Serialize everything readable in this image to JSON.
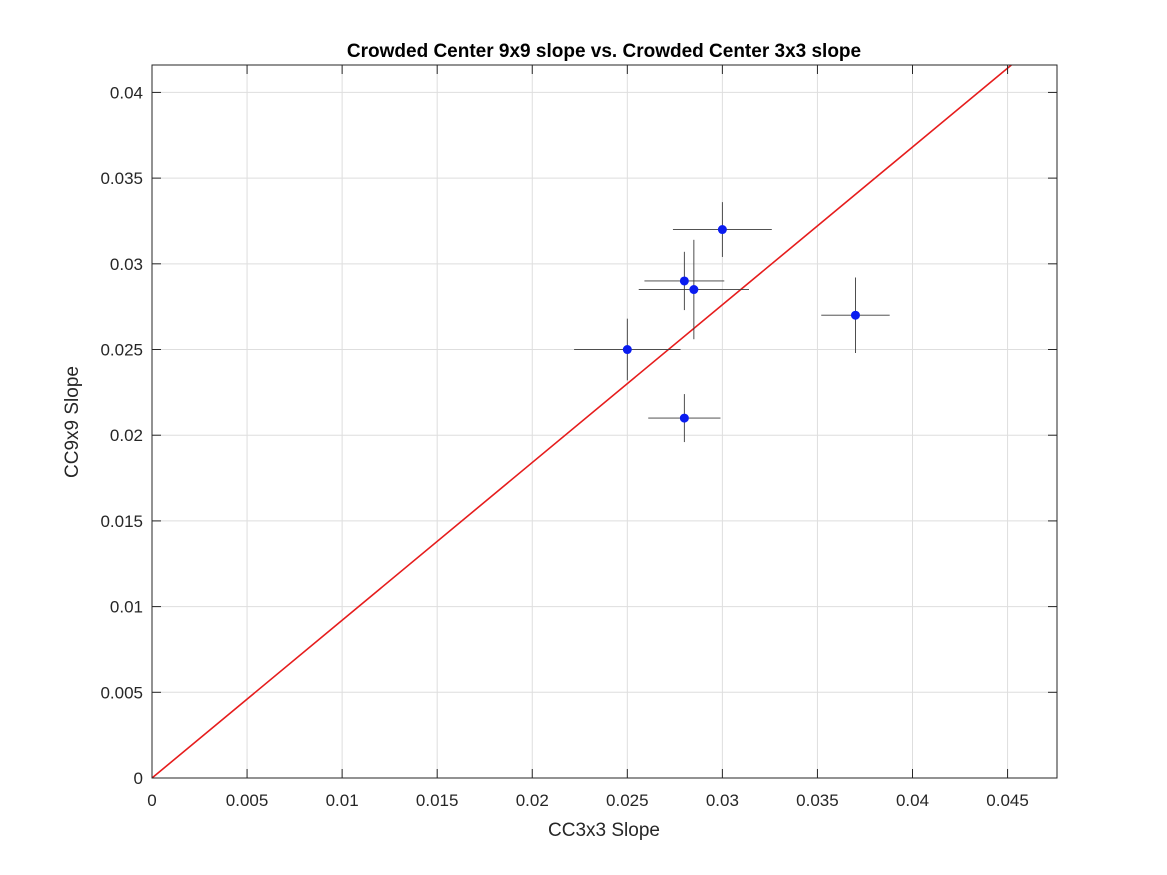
{
  "chart_data": {
    "type": "scatter",
    "title": "Crowded Center 9x9 slope vs. Crowded Center 3x3 slope",
    "xlabel": "CC3x3 Slope",
    "ylabel": "CC9x9 Slope",
    "xlim": [
      0,
      0.0476
    ],
    "ylim": [
      0,
      0.0416
    ],
    "xticks": [
      0,
      0.005,
      0.01,
      0.015,
      0.02,
      0.025,
      0.03,
      0.035,
      0.04,
      0.045
    ],
    "xtick_labels": [
      "0",
      "0.005",
      "0.01",
      "0.015",
      "0.02",
      "0.025",
      "0.03",
      "0.035",
      "0.04",
      "0.045"
    ],
    "yticks": [
      0,
      0.005,
      0.01,
      0.015,
      0.02,
      0.025,
      0.03,
      0.035,
      0.04
    ],
    "ytick_labels": [
      "0",
      "0.005",
      "0.01",
      "0.015",
      "0.02",
      "0.025",
      "0.03",
      "0.035",
      "0.04"
    ],
    "grid": true,
    "points": [
      {
        "x": 0.025,
        "y": 0.025,
        "xerr": 0.0028,
        "yerr": 0.0018
      },
      {
        "x": 0.028,
        "y": 0.029,
        "xerr": 0.0021,
        "yerr": 0.0017
      },
      {
        "x": 0.0285,
        "y": 0.0285,
        "xerr": 0.0029,
        "yerr": 0.0029
      },
      {
        "x": 0.03,
        "y": 0.032,
        "xerr": 0.0026,
        "yerr": 0.0016
      },
      {
        "x": 0.028,
        "y": 0.021,
        "xerr": 0.0019,
        "yerr": 0.0014
      },
      {
        "x": 0.037,
        "y": 0.027,
        "xerr": 0.0018,
        "yerr": 0.0022
      }
    ],
    "reference_line": {
      "x": [
        0,
        0.0452
      ],
      "y": [
        0,
        0.0416
      ]
    },
    "colors": {
      "points": "#0a1cf0",
      "errorbars": "#3a3a3a",
      "reference_line": "#e61c1c",
      "grid": "#dedede",
      "axes": "#262626"
    }
  }
}
